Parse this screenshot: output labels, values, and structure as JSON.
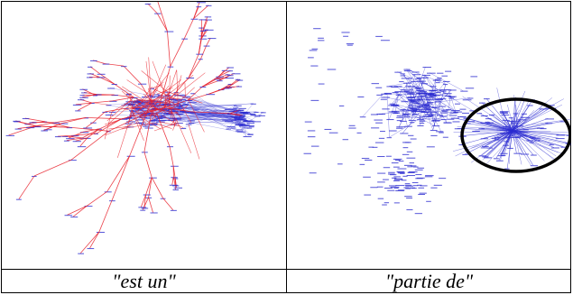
{
  "figure": {
    "left_caption": "\"est un\"",
    "right_caption": "\"partie de\""
  },
  "colors": {
    "red_links": "#e8202a",
    "blue_links": "#2a2ad0",
    "highlight_ring": "#000000"
  }
}
